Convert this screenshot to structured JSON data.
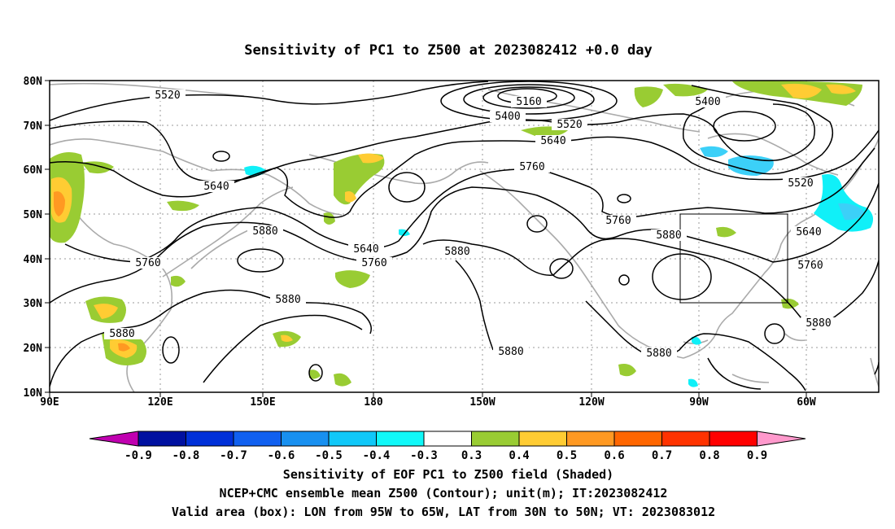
{
  "title": "Sensitivity of PC1 to Z500 at 2023082412 +0.0 day",
  "lat_labels": [
    "80N",
    "70N",
    "60N",
    "50N",
    "40N",
    "30N",
    "20N",
    "10N"
  ],
  "lon_labels": [
    "90E",
    "120E",
    "150E",
    "180",
    "150W",
    "120W",
    "90W",
    "60W"
  ],
  "colorbar": {
    "labels": [
      "-0.9",
      "-0.8",
      "-0.7",
      "-0.6",
      "-0.5",
      "-0.4",
      "-0.3",
      "0.3",
      "0.4",
      "0.5",
      "0.6",
      "0.7",
      "0.8",
      "0.9"
    ],
    "colors": [
      "#c000b0",
      "#0010a0",
      "#0030d8",
      "#1060f0",
      "#1890f0",
      "#10c8f8",
      "#10f8f8",
      "#ffffff",
      "#99cc33",
      "#ffcc33",
      "#ff9922",
      "#ff6600",
      "#ff3300",
      "#ff0000",
      "#ff99cc"
    ]
  },
  "contour_labels": [
    "5520",
    "5160",
    "5400",
    "5520",
    "5400",
    "5640",
    "5760",
    "5640",
    "5520",
    "5880",
    "5760",
    "5880",
    "5640",
    "5760",
    "5760",
    "5880",
    "5640",
    "5880",
    "5760",
    "5880",
    "5880",
    "5880",
    "5880"
  ],
  "captions": [
    "Sensitivity of EOF PC1 to Z500 field (Shaded)",
    "NCEP+CMC ensemble mean Z500 (Contour); unit(m); IT:2023082412",
    "Valid area (box): LON from 95W to 65W, LAT from 30N to 50N; VT: 2023083012"
  ],
  "valid_box": {
    "lon_west": "95W",
    "lon_east": "65W",
    "lat_south": "30N",
    "lat_north": "50N"
  },
  "shading_colors": {
    "green": "#99cc33",
    "yellow": "#ffcc33",
    "orange": "#ff9922",
    "cyan": "#10f0f8",
    "lightblue": "#3cd0f8"
  }
}
